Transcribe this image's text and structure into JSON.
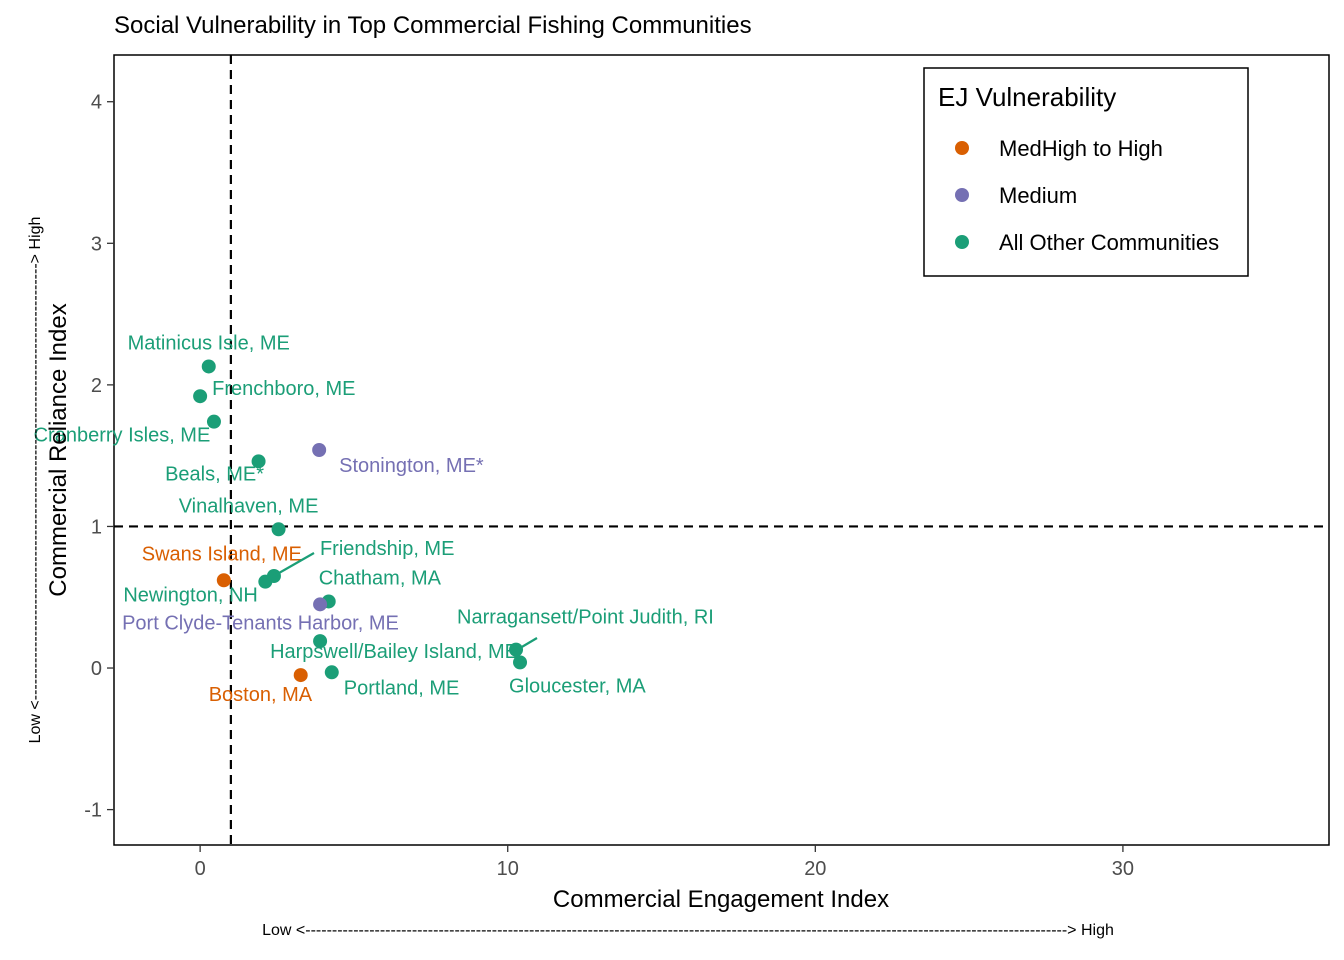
{
  "chart_data": {
    "type": "scatter",
    "title": "Social Vulnerability in Top Commercial Fishing Communities",
    "xlabel": "Commercial Engagement Index",
    "ylabel": "Commercial Reliance Index",
    "x_caption": "Low <-----------------------------------------------------------------------------------------------------------------------------------------------> High",
    "y_caption": "Low <----------------------------------------------------------------------------------> High",
    "xlim": [
      -2.8,
      36.7
    ],
    "ylim": [
      -1.25,
      4.33
    ],
    "xticks": [
      0,
      10,
      20,
      30
    ],
    "yticks": [
      -1,
      0,
      1,
      2,
      3,
      4
    ],
    "reference_lines": {
      "x": 1,
      "y": 1,
      "style": "dashed"
    },
    "grid": false,
    "legend": {
      "title": "EJ Vulnerability",
      "placement": "top-right",
      "items": [
        {
          "label": "MedHigh to High",
          "color": "#d95f02"
        },
        {
          "label": "Medium",
          "color": "#7570b3"
        },
        {
          "label": "All Other Communities",
          "color": "#1b9e77"
        }
      ]
    },
    "groups": {
      "high": "#d95f02",
      "medium": "#7570b3",
      "other": "#1b9e77"
    },
    "points": [
      {
        "label": "Matinicus Isle, ME",
        "x": 0.28,
        "y": 2.13,
        "group": "other"
      },
      {
        "label": "Frenchboro, ME",
        "x": 0.0,
        "y": 1.92,
        "group": "other"
      },
      {
        "label": "Cranberry Isles, ME",
        "x": 0.45,
        "y": 1.74,
        "group": "other"
      },
      {
        "label": "Beals, ME*",
        "x": 1.9,
        "y": 1.46,
        "group": "other"
      },
      {
        "label": "Stonington, ME*",
        "x": 3.87,
        "y": 1.54,
        "group": "medium"
      },
      {
        "label": "Vinalhaven, ME",
        "x": 2.55,
        "y": 0.98,
        "group": "other"
      },
      {
        "label": "Swans Island, ME",
        "x": 0.77,
        "y": 0.62,
        "group": "high"
      },
      {
        "label": "Friendship, ME",
        "x": 2.4,
        "y": 0.65,
        "group": "other"
      },
      {
        "label": "Newington, NH",
        "x": 2.12,
        "y": 0.61,
        "group": "other"
      },
      {
        "label": "Chatham, MA",
        "x": 4.18,
        "y": 0.47,
        "group": "other"
      },
      {
        "label": "Port Clyde-Tenants Harbor, ME",
        "x": 3.9,
        "y": 0.45,
        "group": "medium"
      },
      {
        "label": "Harpswell/Bailey Island, ME",
        "x": 3.9,
        "y": 0.19,
        "group": "other"
      },
      {
        "label": "Narragansett/Point Judith, RI",
        "x": 10.27,
        "y": 0.13,
        "group": "other"
      },
      {
        "label": "Gloucester, MA",
        "x": 10.4,
        "y": 0.04,
        "group": "other"
      },
      {
        "label": "Portland, ME",
        "x": 4.28,
        "y": -0.03,
        "group": "other"
      },
      {
        "label": "Boston, MA",
        "x": 3.27,
        "y": -0.05,
        "group": "high"
      }
    ]
  }
}
